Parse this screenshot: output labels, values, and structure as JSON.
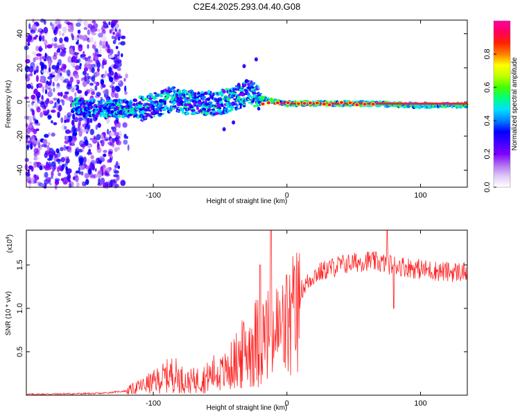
{
  "title": "C2E4.2025.293.04.40.G08",
  "chart_data": [
    {
      "type": "heatmap",
      "name": "spectrogram",
      "xlabel": "Height of straight line (km)",
      "ylabel": "Frequency (Hz)",
      "xlim": [
        -195,
        135
      ],
      "ylim": [
        -50,
        48
      ],
      "xticks": [
        -100,
        0,
        100
      ],
      "yticks": [
        -40,
        -20,
        0,
        20,
        40
      ],
      "colorbar": {
        "label": "Normalized spectral amplitude",
        "range": [
          0.0,
          1.0
        ],
        "ticks": [
          "0.0",
          "0.2",
          "0.4",
          "0.6",
          "0.8"
        ],
        "colors": [
          "#ffffff",
          "#e0c8f8",
          "#b070f0",
          "#8000ff",
          "#4000ff",
          "#0000ff",
          "#0080ff",
          "#00e0ff",
          "#00ff80",
          "#40ff00",
          "#c0ff00",
          "#ffff00",
          "#ff8000",
          "#ff2000",
          "#ff0060",
          "#ff00a0"
        ]
      },
      "features": {
        "noise_region_x": [
          -195,
          -125
        ],
        "main_trace": [
          {
            "x": -155,
            "f": -3
          },
          {
            "x": -130,
            "f": -4
          },
          {
            "x": -110,
            "f": -4
          },
          {
            "x": -95,
            "f": -1
          },
          {
            "x": -85,
            "f": 2
          },
          {
            "x": -70,
            "f": -1
          },
          {
            "x": -55,
            "f": -1
          },
          {
            "x": -40,
            "f": 2
          },
          {
            "x": -28,
            "f": 6
          },
          {
            "x": -20,
            "f": 2
          },
          {
            "x": 0,
            "f": -1
          },
          {
            "x": 30,
            "f": -1
          },
          {
            "x": 60,
            "f": -1
          },
          {
            "x": 100,
            "f": -2
          },
          {
            "x": 135,
            "f": -2
          }
        ]
      }
    },
    {
      "type": "line",
      "name": "snr",
      "xlabel": "Height of straight line (km)",
      "ylabel": "SNR (10 * v/v)",
      "scale_note": "(x10",
      "scale_exp": "4",
      "xlim": [
        -195,
        135
      ],
      "ylim": [
        0,
        1.9
      ],
      "xticks": [
        -100,
        0,
        100
      ],
      "yticks": [
        0.5,
        1.0,
        1.5
      ],
      "ytick_labels": [
        "0.5",
        "1.0",
        "1.5"
      ],
      "color": "#ff2020",
      "series_envelope": [
        {
          "x": -195,
          "y": 0.01
        },
        {
          "x": -140,
          "y": 0.02
        },
        {
          "x": -120,
          "y": 0.05
        },
        {
          "x": -100,
          "y": 0.15
        },
        {
          "x": -85,
          "y": 0.25
        },
        {
          "x": -75,
          "y": 0.15
        },
        {
          "x": -60,
          "y": 0.2
        },
        {
          "x": -45,
          "y": 0.35
        },
        {
          "x": -35,
          "y": 0.55
        },
        {
          "x": -25,
          "y": 0.75
        },
        {
          "x": -15,
          "y": 0.85
        },
        {
          "x": -5,
          "y": 0.9
        },
        {
          "x": 0,
          "y": 1.0
        },
        {
          "x": 10,
          "y": 1.2
        },
        {
          "x": 20,
          "y": 1.38
        },
        {
          "x": 30,
          "y": 1.45
        },
        {
          "x": 40,
          "y": 1.5
        },
        {
          "x": 60,
          "y": 1.55
        },
        {
          "x": 80,
          "y": 1.5
        },
        {
          "x": 100,
          "y": 1.45
        },
        {
          "x": 120,
          "y": 1.42
        },
        {
          "x": 135,
          "y": 1.42
        }
      ],
      "spikes": [
        {
          "x": -12,
          "y": 1.9
        },
        {
          "x": -20,
          "y": 1.5
        },
        {
          "x": 75,
          "y": 1.9
        },
        {
          "x": 80,
          "y": 1.0
        }
      ]
    }
  ]
}
